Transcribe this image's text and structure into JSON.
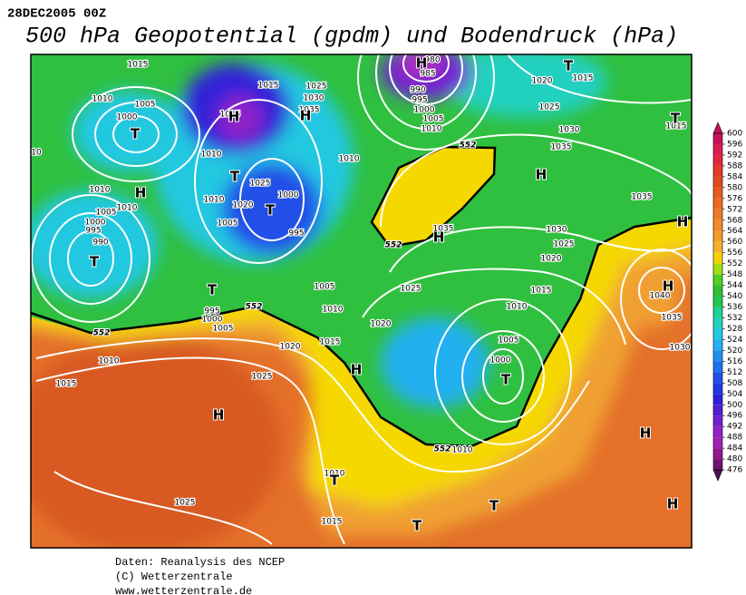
{
  "header": {
    "datetime": "28DEC2005 00Z",
    "title": "500 hPa Geopotential (gpdm) und Bodendruck (hPa)"
  },
  "footer": [
    "Daten: Reanalysis des NCEP",
    "(C) Wetterzentrale",
    "www.wetterzentrale.de"
  ],
  "isobar_labels": [
    "1015",
    "1010",
    "1005",
    "1000",
    "1015",
    "1015",
    "1025",
    "1030",
    "1035",
    "1010",
    "1010",
    "1025",
    "1010",
    "1020",
    "1000",
    "1005",
    "995",
    "1010",
    "1010",
    "1005",
    "1000",
    "995",
    "990",
    "980",
    "985",
    "990",
    "995",
    "1000",
    "1005",
    "1010",
    "1020",
    "1015",
    "1025",
    "1030",
    "1035",
    "1015",
    "1035",
    "1035",
    "1030",
    "1025",
    "1020",
    "1015",
    "1010",
    "1025",
    "1020",
    "1005",
    "1010",
    "1015",
    "1040",
    "1035",
    "1030",
    "1005",
    "1000",
    "995",
    "1000",
    "1005",
    "1020",
    "1025",
    "1010",
    "1015",
    "1010",
    "1010",
    "1025",
    "1015",
    "10"
  ],
  "geopotential_labels": [
    "552",
    "552",
    "552",
    "552",
    "552"
  ],
  "pressure_centers": [
    "T",
    "T",
    "T",
    "H",
    "H",
    "H",
    "H",
    "T",
    "T",
    "H",
    "H",
    "H",
    "H",
    "T",
    "T",
    "H",
    "T",
    "H",
    "H",
    "T",
    "T",
    "T",
    "H"
  ],
  "colorbar": {
    "levels": [
      600,
      596,
      592,
      588,
      584,
      580,
      576,
      572,
      568,
      564,
      560,
      556,
      552,
      548,
      544,
      540,
      536,
      532,
      528,
      524,
      520,
      516,
      512,
      508,
      504,
      500,
      496,
      492,
      488,
      484,
      480,
      476
    ],
    "colors": [
      "#c8105a",
      "#d81e50",
      "#e02840",
      "#e03a28",
      "#e04a1e",
      "#e85a20",
      "#ec6a22",
      "#f07a24",
      "#f28a26",
      "#f49a28",
      "#f6b02a",
      "#f8d000",
      "#a0e010",
      "#50d020",
      "#30c030",
      "#20c850",
      "#20d090",
      "#20d0c0",
      "#20c8e0",
      "#20b0f0",
      "#2090f0",
      "#2070f0",
      "#2050e8",
      "#2038e0",
      "#3020d8",
      "#5020d0",
      "#7020d0",
      "#9020c8",
      "#a020b0",
      "#901890",
      "#701070",
      "#501050"
    ]
  }
}
